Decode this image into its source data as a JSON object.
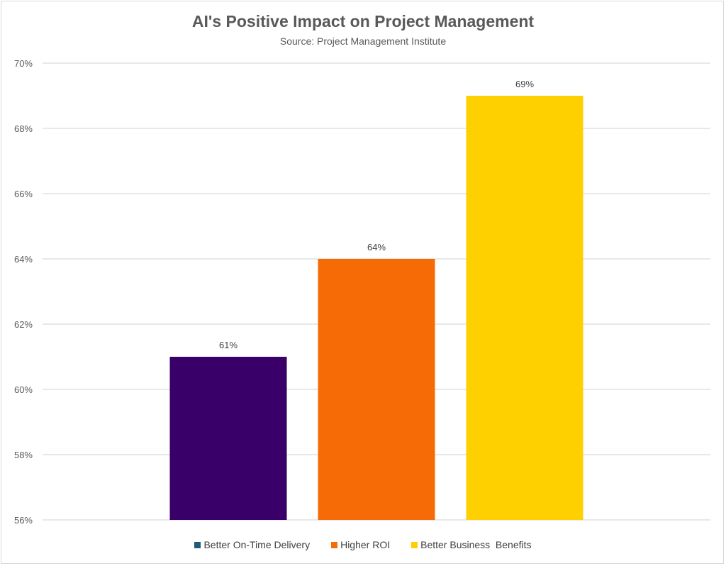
{
  "chart_data": {
    "type": "bar",
    "title": "AI's Positive Impact on Project Management",
    "subtitle": "Source: Project Management Institute",
    "xlabel": "",
    "ylabel": "",
    "ylim": [
      56,
      70
    ],
    "yticks": [
      56,
      58,
      60,
      62,
      64,
      66,
      68,
      70
    ],
    "ytick_labels": [
      "56%",
      "58%",
      "60%",
      "62%",
      "64%",
      "66%",
      "68%",
      "70%"
    ],
    "grid": true,
    "legend_position": "bottom",
    "series": [
      {
        "name": "Better On-Time Delivery",
        "values": [
          61
        ],
        "label": "61%",
        "bar_color": "#3A006A",
        "legend_color": "#1F5C7A"
      },
      {
        "name": "Higher ROI",
        "values": [
          64
        ],
        "label": "64%",
        "bar_color": "#F76B07",
        "legend_color": "#F76B07"
      },
      {
        "name": "Better Business  Benefits",
        "values": [
          69
        ],
        "label": "69%",
        "bar_color": "#FFD000",
        "legend_color": "#FFD000"
      }
    ]
  }
}
